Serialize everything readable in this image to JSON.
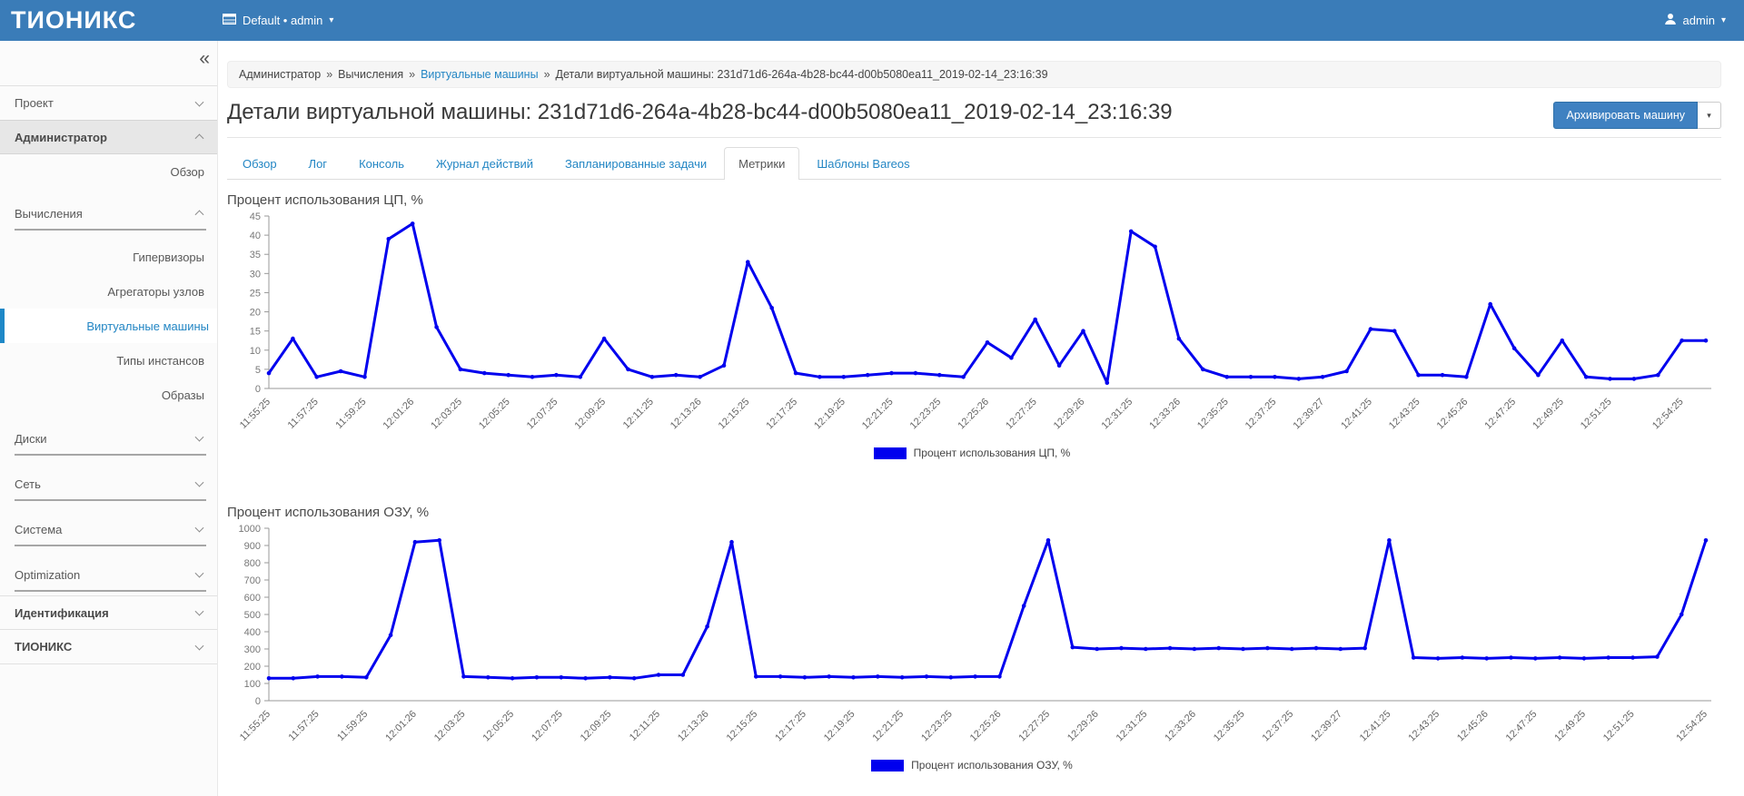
{
  "header": {
    "brand": "ТИОНИКС",
    "context_switcher": "Default • admin",
    "user": "admin",
    "caret": "▾"
  },
  "sidebar": {
    "collapse_glyph": "«",
    "items": [
      {
        "name": "proekt",
        "label": "Проект",
        "kind": "section",
        "chevron": "down",
        "topline": true
      },
      {
        "name": "administrator",
        "label": "Администратор",
        "kind": "section",
        "chevron": "up",
        "pressed": true,
        "bold": true
      },
      {
        "name": "obzor",
        "label": "Обзор",
        "kind": "link"
      },
      {
        "name": "vychisleniya",
        "label": "Вычисления",
        "kind": "subsection",
        "chevron": "up",
        "uline": true,
        "gap": 8
      },
      {
        "name": "gipervizory",
        "label": "Гипервизоры",
        "kind": "link",
        "gap": 10
      },
      {
        "name": "agregatory-uzlov",
        "label": "Агрегаторы узлов",
        "kind": "link"
      },
      {
        "name": "virtualnye-mashiny",
        "label": "Виртуальные машины",
        "kind": "link",
        "active": true
      },
      {
        "name": "tipy-instansov",
        "label": "Типы инстансов",
        "kind": "link"
      },
      {
        "name": "obrazy",
        "label": "Образы",
        "kind": "link"
      },
      {
        "name": "diski",
        "label": "Диски",
        "kind": "subsection",
        "chevron": "down",
        "uline": true,
        "gap": 10
      },
      {
        "name": "set",
        "label": "Сеть",
        "kind": "subsection",
        "chevron": "down",
        "uline": true,
        "gap": 12
      },
      {
        "name": "sistema",
        "label": "Система",
        "kind": "subsection",
        "chevron": "down",
        "uline": true,
        "gap": 12
      },
      {
        "name": "optimization",
        "label": "Optimization",
        "kind": "subsection",
        "chevron": "down",
        "uline": true,
        "gap": 12
      },
      {
        "name": "identifikaciya",
        "label": "Идентификация",
        "kind": "section",
        "chevron": "down",
        "bold": true,
        "topline": true,
        "botline": true,
        "gap": 4
      },
      {
        "name": "tionix",
        "label": "ТИОНИКС",
        "kind": "section",
        "chevron": "down",
        "bold": true,
        "botline": true
      }
    ]
  },
  "breadcrumb": {
    "separator": "»",
    "items": [
      {
        "label": "Администратор",
        "link": false
      },
      {
        "label": "Вычисления",
        "link": false
      },
      {
        "label": "Виртуальные машины",
        "link": true
      },
      {
        "label": "Детали виртуальной машины: 231d71d6-264a-4b28-bc44-d00b5080ea11_2019-02-14_23:16:39",
        "link": false
      }
    ]
  },
  "page": {
    "title": "Детали виртуальной машины: 231d71d6-264a-4b28-bc44-d00b5080ea11_2019-02-14_23:16:39",
    "action_button": "Архивировать машину"
  },
  "tabs": [
    {
      "label": "Обзор",
      "active": false
    },
    {
      "label": "Лог",
      "active": false
    },
    {
      "label": "Консоль",
      "active": false
    },
    {
      "label": "Журнал действий",
      "active": false
    },
    {
      "label": "Запланированные задачи",
      "active": false
    },
    {
      "label": "Метрики",
      "active": true
    },
    {
      "label": "Шаблоны Bareos",
      "active": false
    }
  ],
  "chart_data": [
    {
      "type": "line",
      "title": "Процент использования ЦП, %",
      "legend": "Процент использования ЦП, %",
      "color": "#0000ee",
      "ylim": [
        0,
        45
      ],
      "yticks": [
        0,
        5,
        10,
        15,
        20,
        25,
        30,
        35,
        40,
        45
      ],
      "grid": false,
      "legend_position": "bottom-center",
      "x_labels": [
        "11:55:25",
        "11:57:25",
        "11:59:25",
        "12:01:26",
        "12:03:25",
        "12:05:25",
        "12:07:25",
        "12:09:25",
        "12:11:25",
        "12:13:26",
        "12:15:25",
        "12:17:25",
        "12:19:25",
        "12:21:25",
        "12:23:25",
        "12:25:26",
        "12:27:25",
        "12:29:26",
        "12:31:25",
        "12:33:26",
        "12:35:25",
        "12:37:25",
        "12:39:27",
        "12:41:25",
        "12:43:25",
        "12:45:26",
        "12:47:25",
        "12:49:25",
        "12:51:25",
        "12:54:25"
      ],
      "x_tick_indices": [
        0,
        2,
        4,
        6,
        8,
        10,
        12,
        14,
        16,
        18,
        20,
        22,
        24,
        26,
        28,
        30,
        32,
        34,
        36,
        38,
        40,
        42,
        44,
        46,
        48,
        50,
        52,
        54,
        56,
        59
      ],
      "values": [
        4,
        13,
        3,
        4.5,
        3,
        39,
        43,
        16,
        5,
        4,
        3.5,
        3,
        3.5,
        3,
        13,
        5,
        3,
        3.5,
        3,
        6,
        33,
        21,
        4,
        3,
        3,
        3.5,
        4,
        4,
        3.5,
        3,
        12,
        8,
        18,
        6,
        15,
        1.5,
        41,
        37,
        13,
        5,
        3,
        3,
        3,
        2.5,
        3,
        4.5,
        15.5,
        15,
        3.5,
        3.5,
        3,
        22,
        10.5,
        3.5,
        12.5,
        3,
        2.5,
        2.5,
        3.5,
        12.5,
        12.5
      ]
    },
    {
      "type": "line",
      "title": "Процент использования ОЗУ, %",
      "legend": "Процент использования ОЗУ, %",
      "color": "#0000ee",
      "ylim": [
        0,
        1000
      ],
      "yticks": [
        0,
        100,
        200,
        300,
        400,
        500,
        600,
        700,
        800,
        900,
        1000
      ],
      "grid": false,
      "legend_position": "bottom-center",
      "x_labels": [
        "11:55:25",
        "11:57:25",
        "11:59:25",
        "12:01:26",
        "12:03:25",
        "12:05:25",
        "12:07:25",
        "12:09:25",
        "12:11:25",
        "12:13:26",
        "12:15:25",
        "12:17:25",
        "12:19:25",
        "12:21:25",
        "12:23:25",
        "12:25:26",
        "12:27:25",
        "12:29:26",
        "12:31:25",
        "12:33:26",
        "12:35:25",
        "12:37:25",
        "12:39:27",
        "12:41:25",
        "12:43:25",
        "12:45:26",
        "12:47:25",
        "12:49:25",
        "12:51:25",
        "12:54:25"
      ],
      "x_tick_indices": [
        0,
        2,
        4,
        6,
        8,
        10,
        12,
        14,
        16,
        18,
        20,
        22,
        24,
        26,
        28,
        30,
        32,
        34,
        36,
        38,
        40,
        42,
        44,
        46,
        48,
        50,
        52,
        54,
        56,
        59
      ],
      "values": [
        130,
        130,
        140,
        140,
        135,
        380,
        920,
        930,
        140,
        135,
        130,
        135,
        135,
        130,
        135,
        130,
        150,
        150,
        430,
        920,
        140,
        140,
        135,
        140,
        135,
        140,
        135,
        140,
        135,
        140,
        140,
        550,
        930,
        310,
        300,
        305,
        300,
        305,
        300,
        305,
        300,
        305,
        300,
        305,
        300,
        305,
        930,
        250,
        245,
        250,
        245,
        250,
        245,
        250,
        245,
        250,
        250,
        255,
        500,
        930
      ]
    }
  ]
}
